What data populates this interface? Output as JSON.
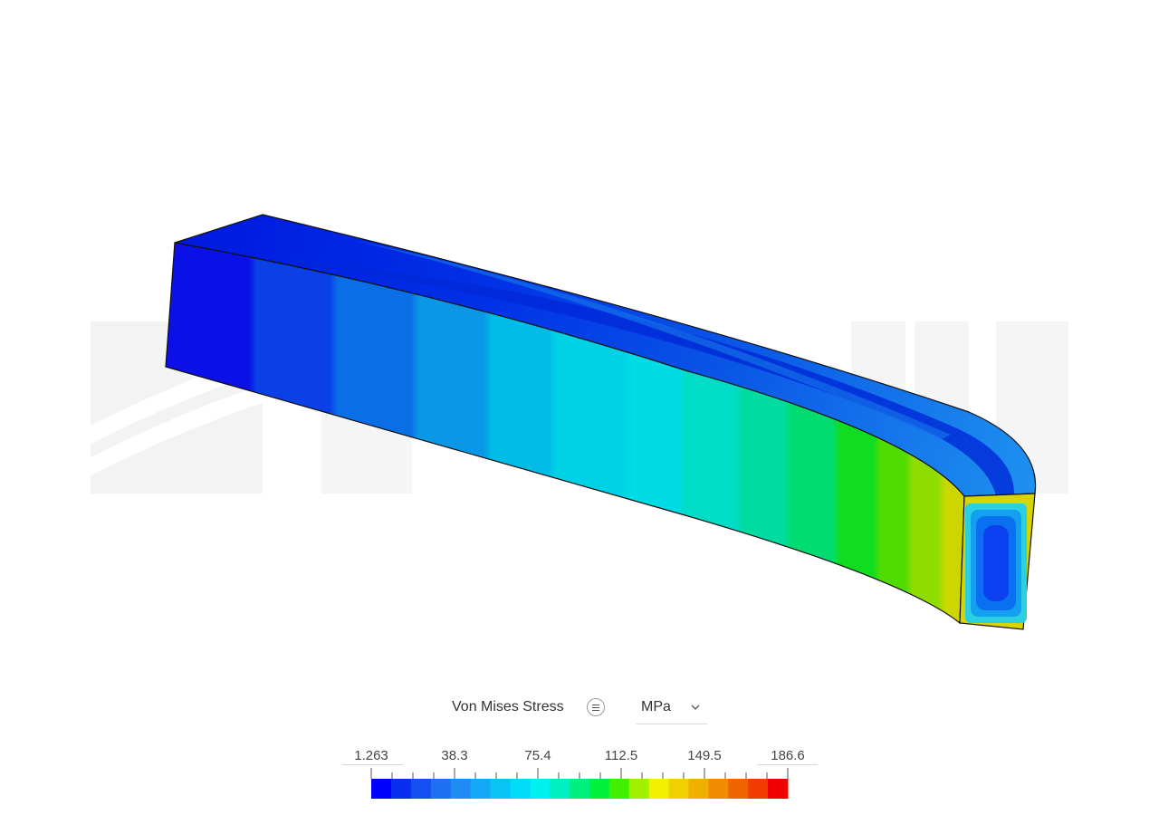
{
  "legend": {
    "title": "Von Mises Stress",
    "unit": "MPa",
    "tick_labels": [
      "1.263",
      "38.3",
      "75.4",
      "112.5",
      "149.5",
      "186.6"
    ],
    "min": 1.263,
    "max": 186.6,
    "colors": [
      "#0000ff",
      "#0a2ef0",
      "#1450f0",
      "#1e70f2",
      "#1e8cf4",
      "#14a8f6",
      "#0ac4f8",
      "#00dcf8",
      "#00f0f0",
      "#00f0c0",
      "#00f080",
      "#00f040",
      "#40f000",
      "#a0f000",
      "#f0f000",
      "#f0d000",
      "#f0b000",
      "#f08c00",
      "#f06400",
      "#f03c00",
      "#f00000"
    ]
  },
  "watermark": {
    "text": "SIMSCALE",
    "color": "#f3f3f3"
  },
  "colors": {
    "background": "#ffffff",
    "outline": "#111111"
  }
}
